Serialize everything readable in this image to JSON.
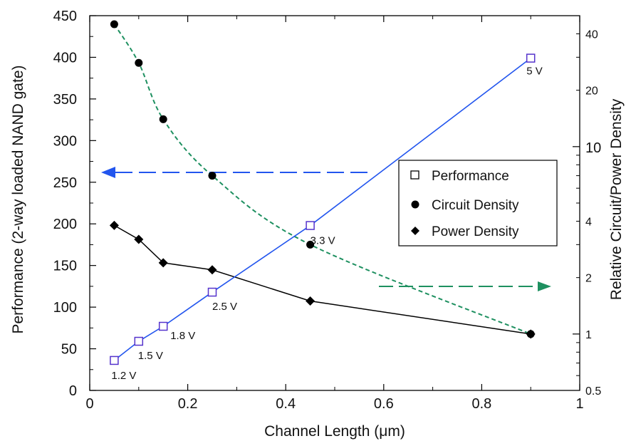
{
  "chart_data": {
    "type": "line",
    "xlabel": "Channel Length (μm)",
    "ylabel": "Performance (2-way loaded NAND gate)",
    "y2label": "Relative Circuit/Power Density",
    "xlim": [
      0,
      1
    ],
    "ylim": [
      0,
      450
    ],
    "y2lim": [
      0.5,
      50
    ],
    "y2scale": "log",
    "grid": false,
    "legend_position": "right",
    "x_ticks": [
      "0",
      "0.2",
      "0.4",
      "0.6",
      "0.8",
      "1"
    ],
    "y_ticks": [
      "0",
      "50",
      "100",
      "150",
      "200",
      "250",
      "300",
      "350",
      "400",
      "450"
    ],
    "y2_ticks": [
      "0.5",
      "1",
      "2",
      "4",
      "10",
      "20",
      "40"
    ],
    "series": [
      {
        "name": "Performance",
        "axis": "left",
        "marker": "open-square",
        "color": "#2255ee",
        "marker_color": "#5533cc",
        "x": [
          0.05,
          0.1,
          0.15,
          0.25,
          0.45,
          0.9
        ],
        "y": [
          36,
          59,
          77,
          118,
          198,
          399
        ],
        "point_labels": [
          "1.2 V",
          "1.5 V",
          "1.8 V",
          "2.5 V",
          "3.3 V",
          "5 V"
        ]
      },
      {
        "name": "Circuit Density",
        "axis": "right",
        "marker": "filled-circle",
        "color": "#1e9060",
        "line_style": "dashed",
        "x": [
          0.05,
          0.1,
          0.15,
          0.25,
          0.45,
          0.9
        ],
        "y": [
          45,
          28,
          14,
          7,
          3,
          1
        ]
      },
      {
        "name": "Power Density",
        "axis": "right",
        "marker": "filled-diamond",
        "color": "#000000",
        "x": [
          0.05,
          0.1,
          0.15,
          0.25,
          0.45,
          0.9
        ],
        "y": [
          3.8,
          3.2,
          2.4,
          2.2,
          1.5,
          1
        ]
      }
    ],
    "arrows": [
      {
        "direction": "left",
        "axis": "left",
        "color": "#2255ee"
      },
      {
        "direction": "right",
        "axis": "right",
        "color": "#1e9060"
      }
    ]
  }
}
